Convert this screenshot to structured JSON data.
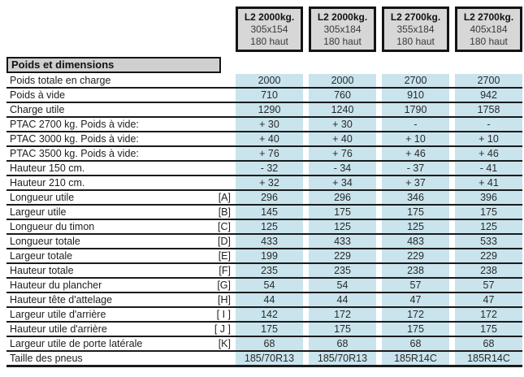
{
  "colors": {
    "cell_blue": "#c9e4ed",
    "header_gray": "#d7d7d7",
    "section_gray": "#cfcfcf",
    "line_black": "#1b1b1b"
  },
  "columns": [
    {
      "title": "L2 2000kg.",
      "size": "305x154",
      "height": "180 haut"
    },
    {
      "title": "L2 2000kg.",
      "size": "305x184",
      "height": "180 haut"
    },
    {
      "title": "L2 2700kg.",
      "size": "355x184",
      "height": "180 haut"
    },
    {
      "title": "L2 2700kg.",
      "size": "405x184",
      "height": "180 haut"
    }
  ],
  "section_title": "Poids et dimensions",
  "rows": [
    {
      "label": "Poids totale en charge",
      "ref": "",
      "values": [
        "2000",
        "2000",
        "2700",
        "2700"
      ]
    },
    {
      "label": "Poids à vide",
      "ref": "",
      "values": [
        "710",
        "760",
        "910",
        "942"
      ]
    },
    {
      "label": "Charge utile",
      "ref": "",
      "values": [
        "1290",
        "1240",
        "1790",
        "1758"
      ]
    },
    {
      "label": "PTAC 2700 kg. Poids à vide:",
      "ref": "",
      "values": [
        "+ 30",
        "+ 30",
        "-",
        "-"
      ]
    },
    {
      "label": "PTAC 3000 kg. Poids à vide:",
      "ref": "",
      "values": [
        "+ 40",
        "+ 40",
        "+ 10",
        "+ 10"
      ]
    },
    {
      "label": "PTAC 3500 kg. Poids à vide:",
      "ref": "",
      "values": [
        "+ 76",
        "+ 76",
        "+ 46",
        "+ 46"
      ]
    },
    {
      "label": "Hauteur 150 cm.",
      "ref": "",
      "values": [
        "- 32",
        "- 34",
        "- 37",
        "- 41"
      ]
    },
    {
      "label": "Hauteur 210 cm.",
      "ref": "",
      "values": [
        "+ 32",
        "+ 34",
        "+ 37",
        "+ 41"
      ]
    },
    {
      "label": "Longueur utile",
      "ref": "[A]",
      "values": [
        "296",
        "296",
        "346",
        "396"
      ]
    },
    {
      "label": "Largeur utile",
      "ref": "[B]",
      "values": [
        "145",
        "175",
        "175",
        "175"
      ]
    },
    {
      "label": "Longueur du timon",
      "ref": "[C]",
      "values": [
        "125",
        "125",
        "125",
        "125"
      ]
    },
    {
      "label": "Longueur totale",
      "ref": "[D]",
      "values": [
        "433",
        "433",
        "483",
        "533"
      ]
    },
    {
      "label": "Largeur totale",
      "ref": "[E]",
      "values": [
        "199",
        "229",
        "229",
        "229"
      ]
    },
    {
      "label": "Hauteur totale",
      "ref": "[F]",
      "values": [
        "235",
        "235",
        "238",
        "238"
      ]
    },
    {
      "label": "Hauteur du plancher",
      "ref": "[G]",
      "values": [
        "54",
        "54",
        "57",
        "57"
      ]
    },
    {
      "label": "Hauteur tête d'attelage",
      "ref": "[H]",
      "values": [
        "44",
        "44",
        "47",
        "47"
      ]
    },
    {
      "label": "Largeur utile d'arrière",
      "ref": "[ I ]",
      "values": [
        "142",
        "172",
        "172",
        "172"
      ]
    },
    {
      "label": "Hauteur utile d'arrière",
      "ref": "[ J ]",
      "values": [
        "175",
        "175",
        "175",
        "175"
      ]
    },
    {
      "label": "Largeur utile de porte latérale",
      "ref": "[K]",
      "values": [
        "68",
        "68",
        "68",
        "68"
      ]
    },
    {
      "label": "Taille des pneus",
      "ref": "",
      "values": [
        "185/70R13",
        "185/70R13",
        "185R14C",
        "185R14C"
      ]
    }
  ]
}
